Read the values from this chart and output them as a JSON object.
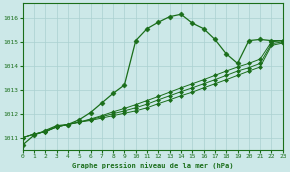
{
  "bg_color": "#cce8e8",
  "line_color": "#1a6e1a",
  "grid_color": "#aad0d0",
  "xlabel": "Graphe pression niveau de la mer (hPa)",
  "xlim": [
    0,
    23
  ],
  "ylim": [
    1010.5,
    1016.6
  ],
  "yticks": [
    1011,
    1012,
    1013,
    1014,
    1015,
    1016
  ],
  "xticks": [
    0,
    1,
    2,
    3,
    4,
    5,
    6,
    7,
    8,
    9,
    10,
    11,
    12,
    13,
    14,
    15,
    16,
    17,
    18,
    19,
    20,
    21,
    22,
    23
  ],
  "curve_x": [
    0,
    1,
    2,
    3,
    4,
    5,
    6,
    7,
    8,
    9,
    10,
    11,
    12,
    13,
    14,
    15,
    16,
    17,
    18,
    19,
    20,
    21,
    22,
    23
  ],
  "curve_y": [
    1010.7,
    1011.1,
    1011.3,
    1011.5,
    1011.55,
    1011.75,
    1012.05,
    1012.45,
    1012.85,
    1013.2,
    1015.05,
    1015.55,
    1015.82,
    1016.05,
    1016.15,
    1015.78,
    1015.55,
    1015.1,
    1014.5,
    1014.1,
    1015.05,
    1015.1,
    1015.05,
    1015.05
  ],
  "line1_x": [
    0,
    1,
    2,
    3,
    4,
    5,
    6,
    7,
    8,
    9,
    10,
    11,
    12,
    13,
    14,
    15,
    16,
    17,
    18,
    19,
    20,
    21,
    22,
    23
  ],
  "line1_y": [
    1011.0,
    1011.15,
    1011.25,
    1011.45,
    1011.55,
    1011.65,
    1011.78,
    1011.92,
    1012.08,
    1012.22,
    1012.38,
    1012.55,
    1012.72,
    1012.9,
    1013.08,
    1013.25,
    1013.42,
    1013.6,
    1013.78,
    1013.95,
    1014.1,
    1014.28,
    1015.0,
    1015.05
  ],
  "line2_x": [
    0,
    1,
    2,
    3,
    4,
    5,
    6,
    7,
    8,
    9,
    10,
    11,
    12,
    13,
    14,
    15,
    16,
    17,
    18,
    19,
    20,
    21,
    22,
    23
  ],
  "line2_y": [
    1011.0,
    1011.15,
    1011.25,
    1011.45,
    1011.55,
    1011.65,
    1011.75,
    1011.88,
    1012.0,
    1012.12,
    1012.25,
    1012.4,
    1012.58,
    1012.75,
    1012.92,
    1013.08,
    1013.25,
    1013.42,
    1013.6,
    1013.78,
    1013.92,
    1014.1,
    1014.92,
    1015.0
  ],
  "line3_x": [
    0,
    1,
    2,
    3,
    4,
    5,
    6,
    7,
    8,
    9,
    10,
    11,
    12,
    13,
    14,
    15,
    16,
    17,
    18,
    19,
    20,
    21,
    22,
    23
  ],
  "line3_y": [
    1011.0,
    1011.15,
    1011.25,
    1011.45,
    1011.55,
    1011.65,
    1011.72,
    1011.82,
    1011.92,
    1012.02,
    1012.12,
    1012.25,
    1012.42,
    1012.58,
    1012.75,
    1012.9,
    1013.08,
    1013.25,
    1013.42,
    1013.6,
    1013.78,
    1013.95,
    1014.85,
    1014.95
  ]
}
